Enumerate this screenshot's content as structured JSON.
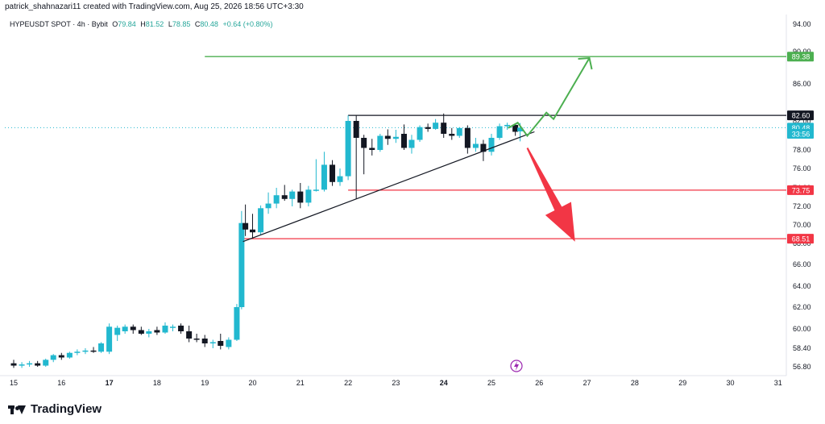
{
  "header": {
    "text": "patrick_shahnazari11 created with TradingView.com, Aug 25, 2026 18:56 UTC+3:30"
  },
  "legend": {
    "symbol": "HYPEUSDT SPOT · 4h · Bybit",
    "o_label": "O",
    "o": "79.84",
    "h_label": "H",
    "h": "81.52",
    "l_label": "L",
    "l": "78.85",
    "c_label": "C",
    "c": "80.48",
    "change": "+0.64 (+0.80%)"
  },
  "footer": {
    "brand": "TradingView"
  },
  "colors": {
    "up": "#26a69a",
    "up_body": "#22b8cf",
    "down": "#131722",
    "green_line": "#4caf50",
    "red_line": "#f23645",
    "red_arrow": "#f23645",
    "black_line": "#131722"
  },
  "chart_data": {
    "type": "candlestick",
    "y_ticks": [
      "94.00",
      "90.00",
      "86.00",
      "82.00",
      "80.00",
      "78.00",
      "76.00",
      "74.00",
      "72.00",
      "70.00",
      "68.00",
      "66.00",
      "64.00",
      "62.00",
      "60.00",
      "58.40",
      "56.80"
    ],
    "x_ticks": [
      "15",
      "16",
      "17",
      "18",
      "19",
      "20",
      "21",
      "22",
      "23",
      "24",
      "25",
      "26",
      "27",
      "28",
      "29",
      "30",
      "31"
    ],
    "bold_x_ticks": [
      "17",
      "24"
    ],
    "price_labels": [
      {
        "text": "89.38",
        "price": 89.38,
        "kind": "green"
      },
      {
        "text": "82.60",
        "price": 82.6,
        "kind": "black"
      },
      {
        "text": "80.48",
        "price": 80.48,
        "kind": "cyan"
      },
      {
        "text": "33:56",
        "price": 79.6,
        "kind": "cyan-sub"
      },
      {
        "text": "73.75",
        "price": 73.75,
        "kind": "red"
      },
      {
        "text": "68.51",
        "price": 68.51,
        "kind": "red"
      }
    ],
    "levels": [
      {
        "name": "target",
        "price": 89.38,
        "from_day": 19.0,
        "to_day": 31.0,
        "color": "green"
      },
      {
        "name": "resistance",
        "price": 82.6,
        "from_day": 22.0,
        "to_day": 31.0,
        "color": "black"
      },
      {
        "name": "support-1",
        "price": 73.75,
        "from_day": 22.0,
        "to_day": 31.0,
        "color": "red"
      },
      {
        "name": "support-2",
        "price": 68.51,
        "from_day": 19.8,
        "to_day": 31.0,
        "color": "red"
      }
    ],
    "candles": [
      {
        "t": 15.0,
        "o": 57.1,
        "h": 57.4,
        "l": 56.7,
        "c": 56.9
      },
      {
        "t": 15.17,
        "o": 56.9,
        "h": 57.2,
        "l": 56.7,
        "c": 57.0
      },
      {
        "t": 15.33,
        "o": 57.0,
        "h": 57.3,
        "l": 56.8,
        "c": 57.1
      },
      {
        "t": 15.5,
        "o": 57.1,
        "h": 57.3,
        "l": 56.8,
        "c": 56.9
      },
      {
        "t": 15.67,
        "o": 56.9,
        "h": 57.5,
        "l": 56.8,
        "c": 57.4
      },
      {
        "t": 15.83,
        "o": 57.4,
        "h": 57.9,
        "l": 57.2,
        "c": 57.8
      },
      {
        "t": 16.0,
        "o": 57.8,
        "h": 58.0,
        "l": 57.4,
        "c": 57.6
      },
      {
        "t": 16.17,
        "o": 57.6,
        "h": 58.1,
        "l": 57.5,
        "c": 58.0
      },
      {
        "t": 16.33,
        "o": 58.0,
        "h": 58.3,
        "l": 57.8,
        "c": 58.1
      },
      {
        "t": 16.5,
        "o": 58.1,
        "h": 58.4,
        "l": 57.9,
        "c": 58.2
      },
      {
        "t": 16.67,
        "o": 58.2,
        "h": 58.5,
        "l": 58.0,
        "c": 58.1
      },
      {
        "t": 16.83,
        "o": 58.1,
        "h": 58.9,
        "l": 58.0,
        "c": 58.8
      },
      {
        "t": 17.0,
        "o": 58.1,
        "h": 58.7,
        "l": 57.9,
        "c": 58.5
      },
      {
        "t": 17.0,
        "o": 58.5,
        "h": 60.5,
        "l": 58.4,
        "c": 60.2
      },
      {
        "t": 17.17,
        "o": 59.5,
        "h": 60.3,
        "l": 59.0,
        "c": 60.1
      },
      {
        "t": 17.33,
        "o": 59.8,
        "h": 60.4,
        "l": 59.6,
        "c": 60.2
      },
      {
        "t": 17.5,
        "o": 60.2,
        "h": 60.4,
        "l": 59.6,
        "c": 59.9
      },
      {
        "t": 17.67,
        "o": 59.9,
        "h": 60.2,
        "l": 59.5,
        "c": 59.6
      },
      {
        "t": 17.83,
        "o": 59.6,
        "h": 60.0,
        "l": 59.3,
        "c": 59.8
      },
      {
        "t": 18.0,
        "o": 59.9,
        "h": 60.2,
        "l": 59.5,
        "c": 59.7
      },
      {
        "t": 18.17,
        "o": 59.7,
        "h": 60.6,
        "l": 59.6,
        "c": 60.3
      },
      {
        "t": 18.33,
        "o": 60.1,
        "h": 60.4,
        "l": 59.8,
        "c": 60.2
      },
      {
        "t": 18.5,
        "o": 60.3,
        "h": 60.5,
        "l": 59.6,
        "c": 59.8
      },
      {
        "t": 18.67,
        "o": 59.8,
        "h": 60.3,
        "l": 58.9,
        "c": 59.2
      },
      {
        "t": 18.83,
        "o": 59.2,
        "h": 59.6,
        "l": 58.9,
        "c": 59.1
      },
      {
        "t": 19.0,
        "o": 59.2,
        "h": 59.5,
        "l": 58.5,
        "c": 58.8
      },
      {
        "t": 19.17,
        "o": 58.8,
        "h": 59.1,
        "l": 58.4,
        "c": 58.9
      },
      {
        "t": 19.33,
        "o": 59.0,
        "h": 59.6,
        "l": 58.3,
        "c": 58.6
      },
      {
        "t": 19.5,
        "o": 58.5,
        "h": 59.3,
        "l": 58.3,
        "c": 59.1
      },
      {
        "t": 19.67,
        "o": 59.1,
        "h": 62.3,
        "l": 59.0,
        "c": 62.0
      },
      {
        "t": 19.77,
        "o": 62.0,
        "h": 71.5,
        "l": 61.8,
        "c": 70.2
      },
      {
        "t": 19.85,
        "o": 70.2,
        "h": 72.2,
        "l": 68.8,
        "c": 69.5
      },
      {
        "t": 20.0,
        "o": 69.5,
        "h": 71.2,
        "l": 68.6,
        "c": 69.2
      },
      {
        "t": 20.17,
        "o": 69.2,
        "h": 72.1,
        "l": 68.9,
        "c": 71.8
      },
      {
        "t": 20.33,
        "o": 71.8,
        "h": 73.5,
        "l": 71.2,
        "c": 72.3
      },
      {
        "t": 20.5,
        "o": 72.3,
        "h": 74.0,
        "l": 71.8,
        "c": 73.2
      },
      {
        "t": 20.67,
        "o": 73.2,
        "h": 74.3,
        "l": 72.6,
        "c": 72.8
      },
      {
        "t": 20.83,
        "o": 72.8,
        "h": 73.8,
        "l": 72.0,
        "c": 73.6
      },
      {
        "t": 21.0,
        "o": 73.6,
        "h": 74.5,
        "l": 71.8,
        "c": 72.4
      },
      {
        "t": 21.17,
        "o": 72.4,
        "h": 74.2,
        "l": 72.0,
        "c": 73.8
      },
      {
        "t": 21.33,
        "o": 73.8,
        "h": 77.0,
        "l": 73.6,
        "c": 73.8
      },
      {
        "t": 21.5,
        "o": 73.8,
        "h": 77.8,
        "l": 73.6,
        "c": 76.4
      },
      {
        "t": 21.67,
        "o": 76.4,
        "h": 76.9,
        "l": 74.2,
        "c": 74.6
      },
      {
        "t": 21.83,
        "o": 74.6,
        "h": 76.0,
        "l": 74.2,
        "c": 75.2
      },
      {
        "t": 22.0,
        "o": 75.2,
        "h": 82.6,
        "l": 74.8,
        "c": 82.0
      },
      {
        "t": 22.17,
        "o": 82.0,
        "h": 82.6,
        "l": 72.8,
        "c": 79.2
      },
      {
        "t": 22.33,
        "o": 79.2,
        "h": 79.5,
        "l": 75.4,
        "c": 78.2
      },
      {
        "t": 22.5,
        "o": 78.2,
        "h": 79.1,
        "l": 77.4,
        "c": 78.0
      },
      {
        "t": 22.67,
        "o": 78.0,
        "h": 79.6,
        "l": 77.8,
        "c": 79.4
      },
      {
        "t": 22.83,
        "o": 79.4,
        "h": 80.1,
        "l": 78.5,
        "c": 79.1
      },
      {
        "t": 23.0,
        "o": 79.1,
        "h": 80.0,
        "l": 78.7,
        "c": 79.3
      },
      {
        "t": 23.17,
        "o": 79.6,
        "h": 81.2,
        "l": 78.0,
        "c": 78.2
      },
      {
        "t": 23.33,
        "o": 78.2,
        "h": 79.5,
        "l": 77.6,
        "c": 79.0
      },
      {
        "t": 23.5,
        "o": 79.0,
        "h": 81.0,
        "l": 78.8,
        "c": 80.6
      },
      {
        "t": 23.67,
        "o": 80.6,
        "h": 81.4,
        "l": 79.8,
        "c": 80.2
      },
      {
        "t": 23.83,
        "o": 80.2,
        "h": 82.2,
        "l": 80.0,
        "c": 81.6
      },
      {
        "t": 24.0,
        "o": 81.6,
        "h": 82.8,
        "l": 79.2,
        "c": 79.6
      },
      {
        "t": 24.17,
        "o": 79.6,
        "h": 80.4,
        "l": 79.0,
        "c": 79.4
      },
      {
        "t": 24.33,
        "o": 79.4,
        "h": 80.6,
        "l": 79.2,
        "c": 80.4
      },
      {
        "t": 24.5,
        "o": 80.4,
        "h": 81.0,
        "l": 77.6,
        "c": 78.2
      },
      {
        "t": 24.67,
        "o": 78.2,
        "h": 79.2,
        "l": 77.8,
        "c": 78.6
      },
      {
        "t": 24.83,
        "o": 78.6,
        "h": 79.0,
        "l": 76.8,
        "c": 77.8
      },
      {
        "t": 25.0,
        "o": 77.8,
        "h": 79.6,
        "l": 77.4,
        "c": 79.2
      },
      {
        "t": 25.17,
        "o": 79.2,
        "h": 81.4,
        "l": 79.0,
        "c": 80.8
      },
      {
        "t": 25.33,
        "o": 80.8,
        "h": 81.6,
        "l": 80.0,
        "c": 81.1
      },
      {
        "t": 25.5,
        "o": 81.1,
        "h": 81.4,
        "l": 79.4,
        "c": 79.8
      },
      {
        "t": 25.6,
        "o": 79.84,
        "h": 81.52,
        "l": 78.85,
        "c": 80.48
      }
    ],
    "trendline": {
      "from": {
        "t": 19.8,
        "p": 68.2
      },
      "to": {
        "t": 25.9,
        "p": 79.8
      }
    },
    "projections": [
      {
        "name": "bullish-path",
        "color": "green",
        "points": [
          [
            25.35,
            80.4
          ],
          [
            25.55,
            81.6
          ],
          [
            25.75,
            79.4
          ],
          [
            26.15,
            82.9
          ],
          [
            26.3,
            82.2
          ],
          [
            27.05,
            89.2
          ]
        ]
      },
      {
        "name": "bearish-path",
        "color": "red",
        "points": [
          [
            25.75,
            78.2
          ],
          [
            26.75,
            68.2
          ]
        ]
      }
    ]
  }
}
